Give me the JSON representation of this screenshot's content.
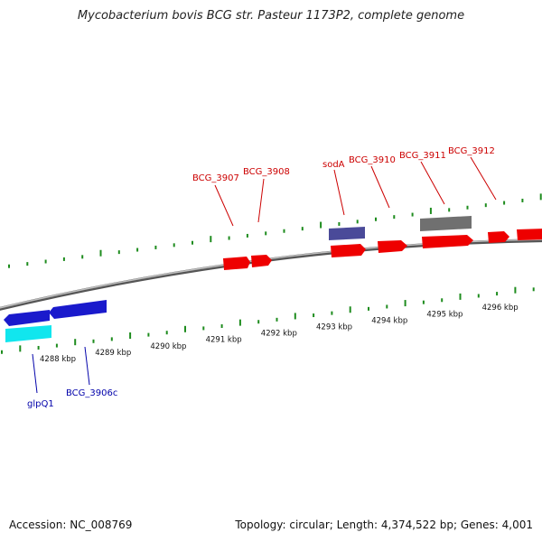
{
  "title": "Mycobacterium bovis BCG str. Pasteur 1173P2, complete genome",
  "footer": {
    "accession": "Accession: NC_008769",
    "summary": "Topology: circular; Length: 4,374,522 bp; Genes: 4,001"
  },
  "colors": {
    "forward_gene": "#ee0000",
    "reverse_gene": "#1a1acc",
    "cyan_gene": "#11e6ee",
    "grey_gene": "#707070",
    "purple_gene": "#4a4a99",
    "tick_green": "#1e8c1e",
    "label_red": "#cc0000",
    "label_blue": "#0000aa"
  },
  "scale_labels": [
    "4288 kbp",
    "4289 kbp",
    "4290 kbp",
    "4291 kbp",
    "4292 kbp",
    "4293 kbp",
    "4294 kbp",
    "4295 kbp",
    "4296 kbp"
  ],
  "gene_labels": {
    "top": [
      "BCG_3907",
      "BCG_3908",
      "sodA",
      "BCG_3910",
      "BCG_3911",
      "BCG_3912"
    ],
    "bottom": [
      "glpQ1",
      "BCG_3906c"
    ]
  }
}
